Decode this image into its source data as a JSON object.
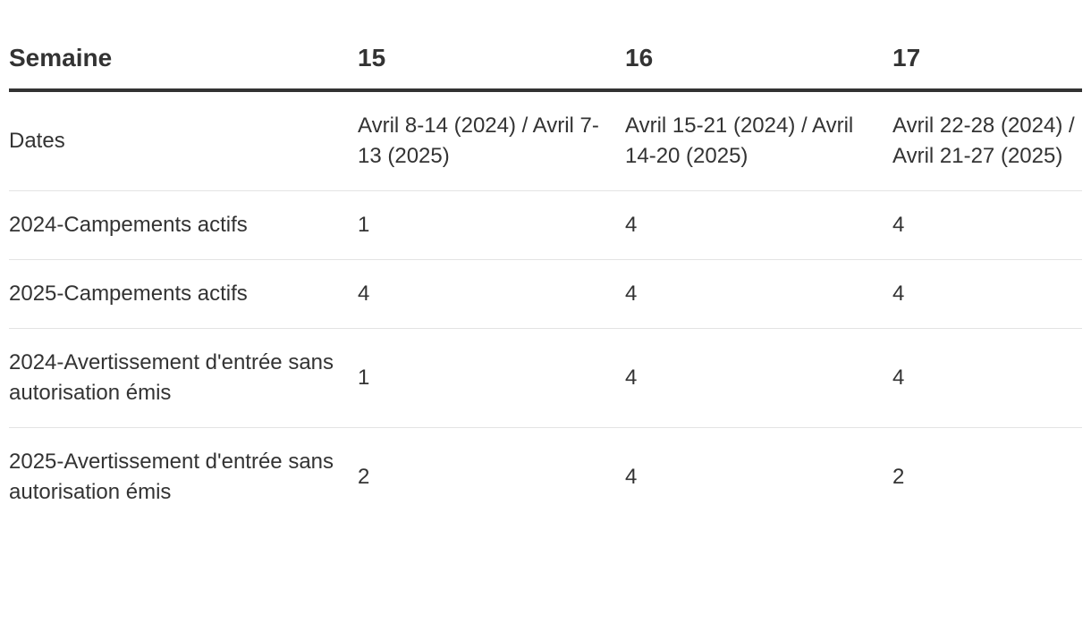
{
  "table": {
    "header": [
      "Semaine",
      "15",
      "16",
      "17"
    ],
    "rows": [
      [
        "Dates",
        "Avril 8-14 (2024) / Avril 7-13 (2025)",
        "Avril 15-21 (2024) / Avril 14-20 (2025)",
        "Avril 22-28 (2024) / Avril 21-27 (2025)"
      ],
      [
        "2024-Campements actifs",
        1,
        4,
        4
      ],
      [
        "2025-Campements actifs",
        4,
        4,
        4
      ],
      [
        "2024-Avertissement d'entrée sans autorisation émis",
        1,
        4,
        4
      ],
      [
        "2025-Avertissement d'entrée sans autorisation émis",
        2,
        4,
        2
      ]
    ]
  }
}
